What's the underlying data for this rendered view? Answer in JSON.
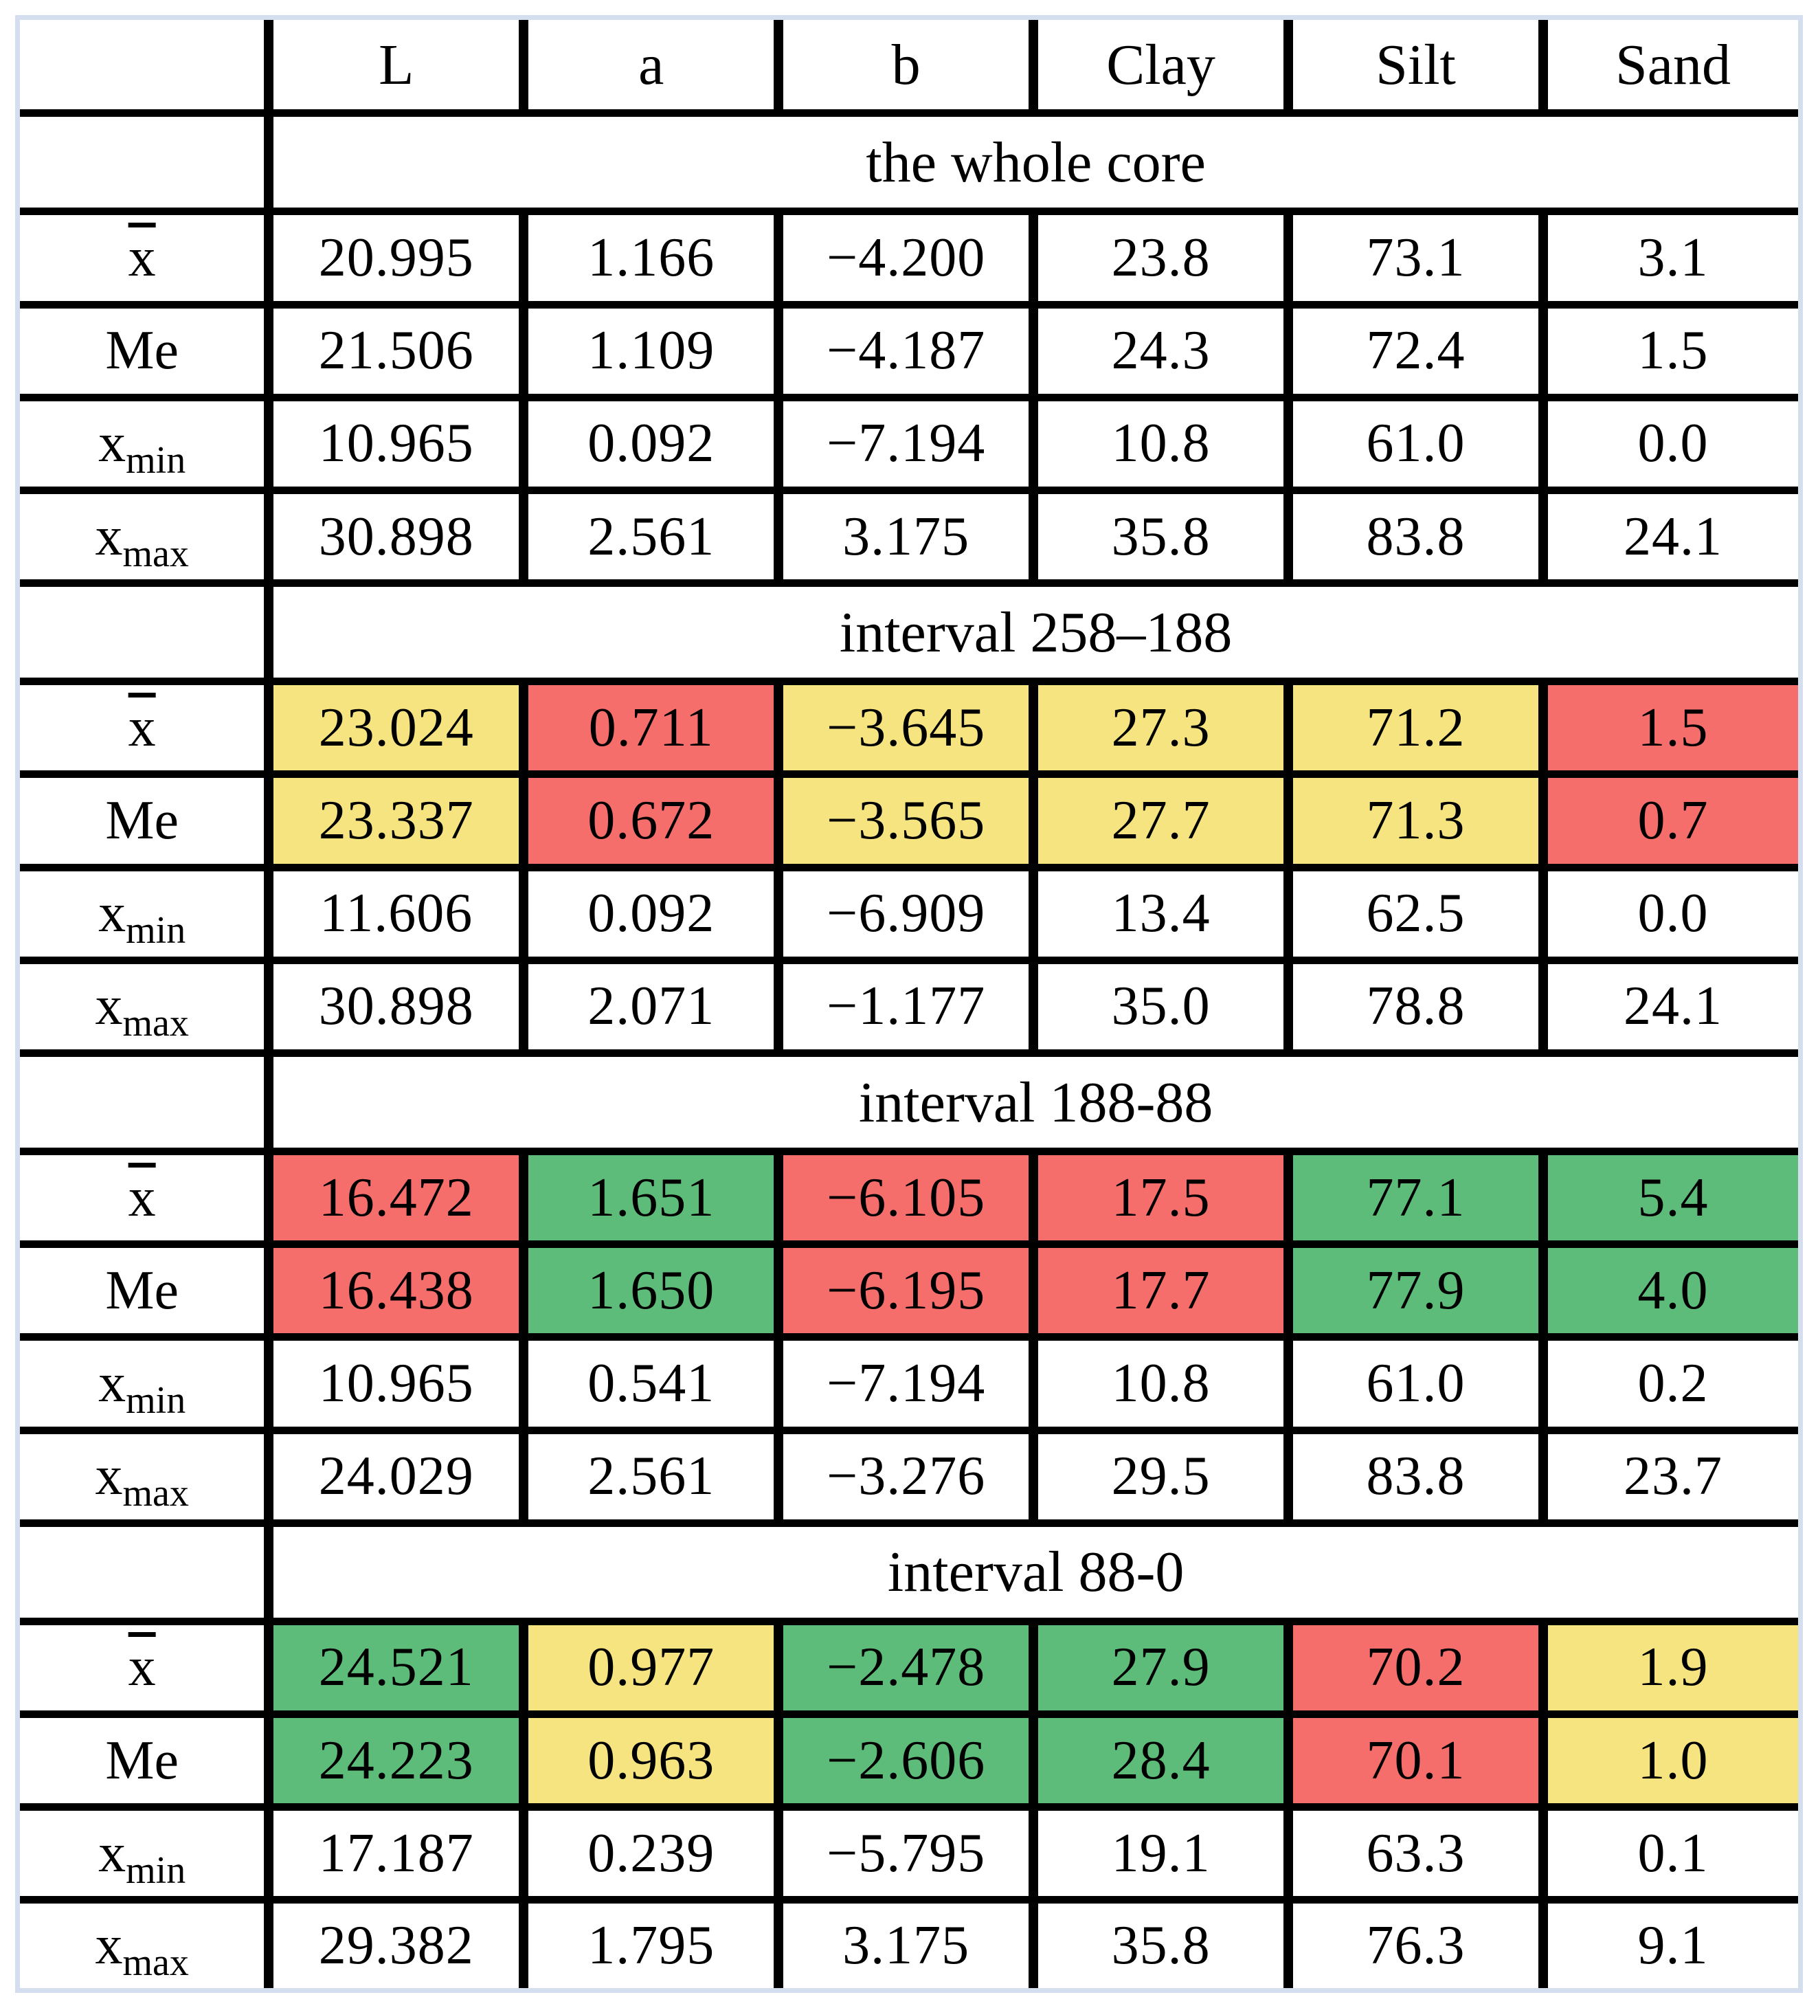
{
  "palette": {
    "yellow": "#f5e47f",
    "red": "#f56e6b",
    "green": "#5ebc7a",
    "white": "#ffffff",
    "grid_line": "#000000",
    "outer_border": "#d4deee"
  },
  "table": {
    "corner": "",
    "columns": [
      "L",
      "a",
      "b",
      "Clay",
      "Silt",
      "Sand"
    ],
    "row_labels": {
      "mean": {
        "base": "x",
        "overline": true,
        "sub": ""
      },
      "median": {
        "base": "Me",
        "overline": false,
        "sub": ""
      },
      "min": {
        "base": "x",
        "overline": false,
        "sub": "min"
      },
      "max": {
        "base": "x",
        "overline": false,
        "sub": "max"
      }
    },
    "sections": [
      {
        "title": "the whole core",
        "rows": [
          {
            "label": "mean",
            "values": [
              "20.995",
              "1.166",
              "−4.200",
              "23.8",
              "73.1",
              "3.1"
            ],
            "fills": [
              "white",
              "white",
              "white",
              "white",
              "white",
              "white"
            ]
          },
          {
            "label": "median",
            "values": [
              "21.506",
              "1.109",
              "−4.187",
              "24.3",
              "72.4",
              "1.5"
            ],
            "fills": [
              "white",
              "white",
              "white",
              "white",
              "white",
              "white"
            ]
          },
          {
            "label": "min",
            "values": [
              "10.965",
              "0.092",
              "−7.194",
              "10.8",
              "61.0",
              "0.0"
            ],
            "fills": [
              "white",
              "white",
              "white",
              "white",
              "white",
              "white"
            ]
          },
          {
            "label": "max",
            "values": [
              "30.898",
              "2.561",
              "3.175",
              "35.8",
              "83.8",
              "24.1"
            ],
            "fills": [
              "white",
              "white",
              "white",
              "white",
              "white",
              "white"
            ]
          }
        ]
      },
      {
        "title": "interval 258–188",
        "rows": [
          {
            "label": "mean",
            "values": [
              "23.024",
              "0.711",
              "−3.645",
              "27.3",
              "71.2",
              "1.5"
            ],
            "fills": [
              "yellow",
              "red",
              "yellow",
              "yellow",
              "yellow",
              "red"
            ]
          },
          {
            "label": "median",
            "values": [
              "23.337",
              "0.672",
              "−3.565",
              "27.7",
              "71.3",
              "0.7"
            ],
            "fills": [
              "yellow",
              "red",
              "yellow",
              "yellow",
              "yellow",
              "red"
            ]
          },
          {
            "label": "min",
            "values": [
              "11.606",
              "0.092",
              "−6.909",
              "13.4",
              "62.5",
              "0.0"
            ],
            "fills": [
              "white",
              "white",
              "white",
              "white",
              "white",
              "white"
            ]
          },
          {
            "label": "max",
            "values": [
              "30.898",
              "2.071",
              "−1.177",
              "35.0",
              "78.8",
              "24.1"
            ],
            "fills": [
              "white",
              "white",
              "white",
              "white",
              "white",
              "white"
            ]
          }
        ]
      },
      {
        "title": "interval 188-88",
        "rows": [
          {
            "label": "mean",
            "values": [
              "16.472",
              "1.651",
              "−6.105",
              "17.5",
              "77.1",
              "5.4"
            ],
            "fills": [
              "red",
              "green",
              "red",
              "red",
              "green",
              "green"
            ]
          },
          {
            "label": "median",
            "values": [
              "16.438",
              "1.650",
              "−6.195",
              "17.7",
              "77.9",
              "4.0"
            ],
            "fills": [
              "red",
              "green",
              "red",
              "red",
              "green",
              "green"
            ]
          },
          {
            "label": "min",
            "values": [
              "10.965",
              "0.541",
              "−7.194",
              "10.8",
              "61.0",
              "0.2"
            ],
            "fills": [
              "white",
              "white",
              "white",
              "white",
              "white",
              "white"
            ]
          },
          {
            "label": "max",
            "values": [
              "24.029",
              "2.561",
              "−3.276",
              "29.5",
              "83.8",
              "23.7"
            ],
            "fills": [
              "white",
              "white",
              "white",
              "white",
              "white",
              "white"
            ]
          }
        ]
      },
      {
        "title": "interval 88-0",
        "rows": [
          {
            "label": "mean",
            "values": [
              "24.521",
              "0.977",
              "−2.478",
              "27.9",
              "70.2",
              "1.9"
            ],
            "fills": [
              "green",
              "yellow",
              "green",
              "green",
              "red",
              "yellow"
            ]
          },
          {
            "label": "median",
            "values": [
              "24.223",
              "0.963",
              "−2.606",
              "28.4",
              "70.1",
              "1.0"
            ],
            "fills": [
              "green",
              "yellow",
              "green",
              "green",
              "red",
              "yellow"
            ]
          },
          {
            "label": "min",
            "values": [
              "17.187",
              "0.239",
              "−5.795",
              "19.1",
              "63.3",
              "0.1"
            ],
            "fills": [
              "white",
              "white",
              "white",
              "white",
              "white",
              "white"
            ]
          },
          {
            "label": "max",
            "values": [
              "29.382",
              "1.795",
              "3.175",
              "35.8",
              "76.3",
              "9.1"
            ],
            "fills": [
              "white",
              "white",
              "white",
              "white",
              "white",
              "white"
            ]
          }
        ]
      }
    ]
  }
}
